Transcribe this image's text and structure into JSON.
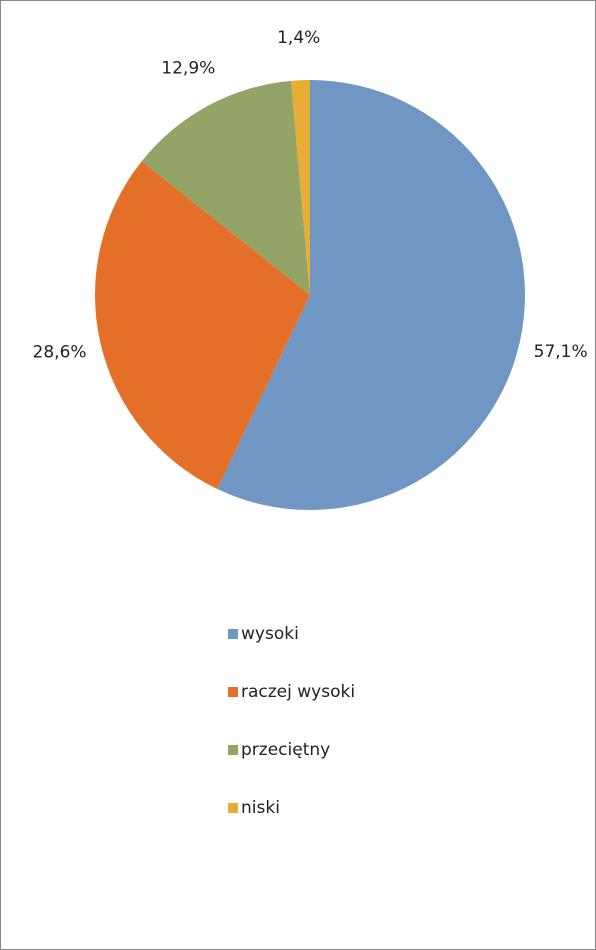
{
  "chart_data": {
    "type": "pie",
    "categories": [
      "wysoki",
      "raczej wysoki",
      "przeciętny",
      "niski"
    ],
    "values": [
      57.1,
      28.6,
      12.9,
      1.4
    ],
    "value_labels": [
      "57,1%",
      "28,6%",
      "12,9%",
      "1,4%"
    ],
    "colors": [
      "#7096c4",
      "#e46f28",
      "#94a466",
      "#e7ae33"
    ],
    "legend": "bottom"
  }
}
